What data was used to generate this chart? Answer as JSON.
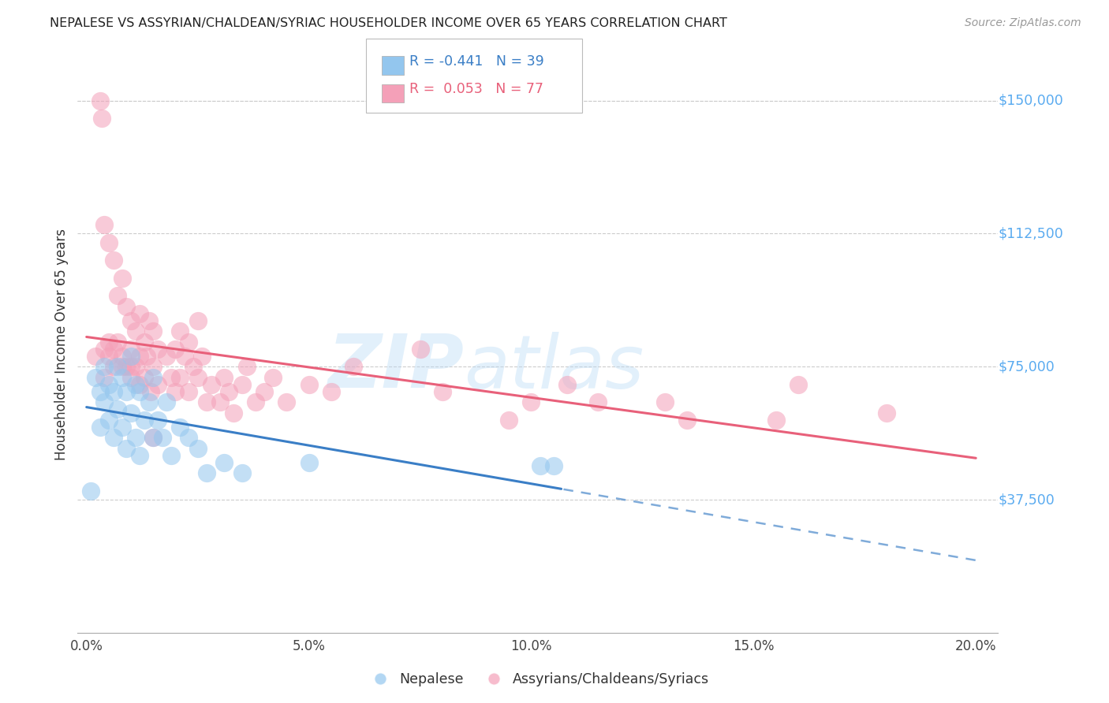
{
  "title": "NEPALESE VS ASSYRIAN/CHALDEAN/SYRIAC HOUSEHOLDER INCOME OVER 65 YEARS CORRELATION CHART",
  "source": "Source: ZipAtlas.com",
  "ylabel": "Householder Income Over 65 years",
  "xlabel_ticks": [
    "0.0%",
    "5.0%",
    "10.0%",
    "15.0%",
    "20.0%"
  ],
  "xlabel_vals": [
    0.0,
    5.0,
    10.0,
    15.0,
    20.0
  ],
  "ytick_labels": [
    "$37,500",
    "$75,000",
    "$112,500",
    "$150,000"
  ],
  "ytick_vals": [
    37500,
    75000,
    112500,
    150000
  ],
  "ylim": [
    0,
    162500
  ],
  "xlim": [
    -0.2,
    20.5
  ],
  "legend_entry1": "R = -0.441   N = 39",
  "legend_entry2": "R =  0.053   N = 77",
  "legend_label1": "Nepalese",
  "legend_label2": "Assyrians/Chaldeans/Syriacs",
  "blue_color": "#93C6EE",
  "pink_color": "#F4A0B8",
  "blue_line_color": "#3A7EC6",
  "pink_line_color": "#E8607A",
  "watermark_zip": "ZIP",
  "watermark_atlas": "atlas",
  "nepalese_x": [
    0.1,
    0.2,
    0.3,
    0.3,
    0.4,
    0.4,
    0.5,
    0.5,
    0.6,
    0.6,
    0.7,
    0.7,
    0.8,
    0.8,
    0.9,
    0.9,
    1.0,
    1.0,
    1.1,
    1.1,
    1.2,
    1.2,
    1.3,
    1.4,
    1.5,
    1.5,
    1.6,
    1.7,
    1.8,
    1.9,
    2.1,
    2.3,
    2.5,
    2.7,
    3.1,
    3.5,
    5.0,
    10.2,
    10.5
  ],
  "nepalese_y": [
    40000,
    72000,
    68000,
    58000,
    75000,
    65000,
    70000,
    60000,
    68000,
    55000,
    75000,
    63000,
    72000,
    58000,
    68000,
    52000,
    78000,
    62000,
    70000,
    55000,
    68000,
    50000,
    60000,
    65000,
    72000,
    55000,
    60000,
    55000,
    65000,
    50000,
    58000,
    55000,
    52000,
    45000,
    48000,
    45000,
    48000,
    47000,
    47000
  ],
  "assyrian_x": [
    0.2,
    0.3,
    0.35,
    0.4,
    0.4,
    0.5,
    0.5,
    0.6,
    0.6,
    0.7,
    0.7,
    0.8,
    0.8,
    0.9,
    0.9,
    1.0,
    1.0,
    1.0,
    1.1,
    1.1,
    1.2,
    1.2,
    1.3,
    1.3,
    1.35,
    1.4,
    1.5,
    1.5,
    1.6,
    1.6,
    1.8,
    1.9,
    2.0,
    2.0,
    2.1,
    2.1,
    2.2,
    2.3,
    2.3,
    2.4,
    2.5,
    2.5,
    2.6,
    2.7,
    2.8,
    3.0,
    3.1,
    3.2,
    3.3,
    3.5,
    3.6,
    3.8,
    4.0,
    4.2,
    4.5,
    5.0,
    5.5,
    6.0,
    7.5,
    8.0,
    9.5,
    10.0,
    10.8,
    11.5,
    13.0,
    13.5,
    15.5,
    16.0,
    18.0,
    1.45,
    1.5,
    0.4,
    0.5,
    0.6,
    0.8,
    1.0,
    1.2
  ],
  "assyrian_y": [
    78000,
    150000,
    145000,
    80000,
    72000,
    82000,
    78000,
    80000,
    75000,
    95000,
    82000,
    100000,
    78000,
    92000,
    75000,
    88000,
    80000,
    72000,
    85000,
    75000,
    90000,
    78000,
    82000,
    72000,
    78000,
    88000,
    85000,
    75000,
    80000,
    70000,
    78000,
    72000,
    80000,
    68000,
    85000,
    72000,
    78000,
    82000,
    68000,
    75000,
    88000,
    72000,
    78000,
    65000,
    70000,
    65000,
    72000,
    68000,
    62000,
    70000,
    75000,
    65000,
    68000,
    72000,
    65000,
    70000,
    68000,
    75000,
    80000,
    68000,
    60000,
    65000,
    70000,
    65000,
    65000,
    60000,
    60000,
    70000,
    62000,
    68000,
    55000,
    115000,
    110000,
    105000,
    75000,
    75000,
    70000
  ]
}
